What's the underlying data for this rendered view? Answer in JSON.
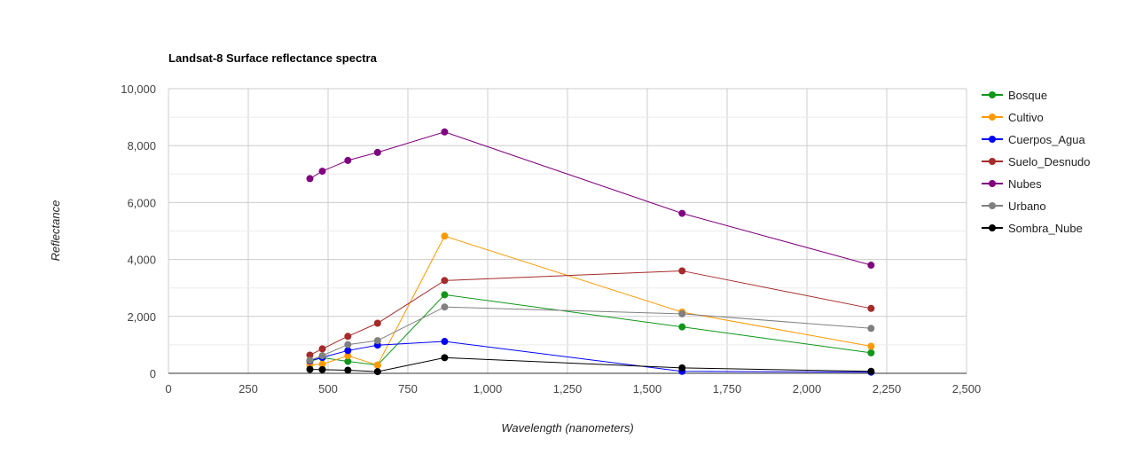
{
  "chart_data": {
    "type": "line",
    "title": "Landsat-8 Surface reflectance spectra",
    "xlabel": "Wavelength (nanometers)",
    "ylabel": "Reflectance",
    "xlim": [
      0,
      2500
    ],
    "ylim": [
      0,
      10000
    ],
    "x_ticks": [
      "0",
      "250",
      "500",
      "750",
      "1,000",
      "1,250",
      "1,500",
      "1,750",
      "2,000",
      "2,250",
      "2,500"
    ],
    "y_ticks": [
      "0",
      "2,000",
      "4,000",
      "6,000",
      "8,000",
      "10,000"
    ],
    "grid": true,
    "legend_position": "right",
    "x": [
      443,
      482,
      562,
      655,
      865,
      1609,
      2201
    ],
    "series": [
      {
        "name": "Bosque",
        "color": "#109618",
        "values": [
          420,
          550,
          420,
          290,
          2760,
          1630,
          720
        ]
      },
      {
        "name": "Cultivo",
        "color": "#ff9900",
        "values": [
          300,
          320,
          620,
          290,
          4820,
          2150,
          950
        ]
      },
      {
        "name": "Cuerpos_Agua",
        "color": "#0000ff",
        "values": [
          440,
          560,
          800,
          990,
          1120,
          70,
          40
        ]
      },
      {
        "name": "Suelo_Desnudo",
        "color": "#a52a2a",
        "values": [
          640,
          860,
          1300,
          1760,
          3260,
          3600,
          2280
        ]
      },
      {
        "name": "Nubes",
        "color": "#800080",
        "values": [
          6840,
          7100,
          7480,
          7760,
          8480,
          5620,
          3800
        ]
      },
      {
        "name": "Urbano",
        "color": "#808080",
        "values": [
          460,
          620,
          1010,
          1150,
          2330,
          2090,
          1580
        ]
      },
      {
        "name": "Sombra_Nube",
        "color": "#000000",
        "values": [
          140,
          130,
          110,
          60,
          550,
          190,
          70
        ]
      }
    ]
  }
}
